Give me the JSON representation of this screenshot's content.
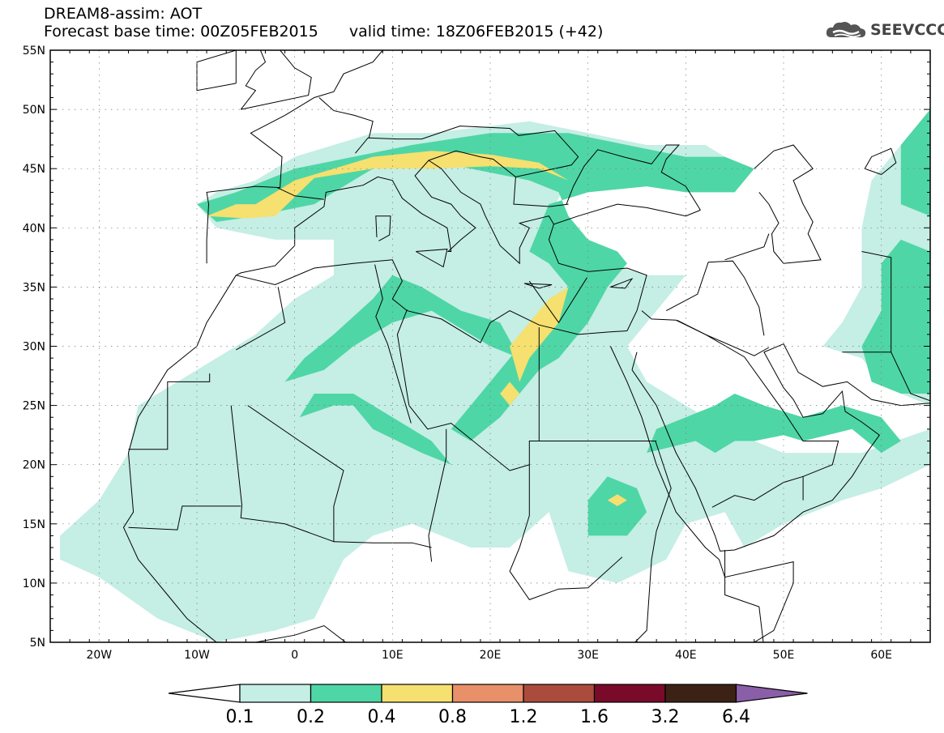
{
  "header": {
    "title": "DREAM8-assim: AOT",
    "base_time": "Forecast base time: 00Z05FEB2015",
    "valid_time": "valid time: 18Z06FEB2015 (+42)"
  },
  "logo": {
    "text": "SEEVCCC",
    "icon": "cloud-logo-icon"
  },
  "map": {
    "lon_range": [
      -25,
      65
    ],
    "lat_range": [
      5,
      55
    ],
    "lon_ticks": [
      {
        "value": -20,
        "label": "20W"
      },
      {
        "value": -10,
        "label": "10W"
      },
      {
        "value": 0,
        "label": "0"
      },
      {
        "value": 10,
        "label": "10E"
      },
      {
        "value": 20,
        "label": "20E"
      },
      {
        "value": 30,
        "label": "30E"
      },
      {
        "value": 40,
        "label": "40E"
      },
      {
        "value": 50,
        "label": "50E"
      },
      {
        "value": 60,
        "label": "60E"
      }
    ],
    "lat_ticks": [
      {
        "value": 55,
        "label": "55N"
      },
      {
        "value": 50,
        "label": "50N"
      },
      {
        "value": 45,
        "label": "45N"
      },
      {
        "value": 40,
        "label": "40N"
      },
      {
        "value": 35,
        "label": "35N"
      },
      {
        "value": 30,
        "label": "30N"
      },
      {
        "value": 25,
        "label": "25N"
      },
      {
        "value": 20,
        "label": "20N"
      },
      {
        "value": 15,
        "label": "15N"
      },
      {
        "value": 10,
        "label": "10N"
      },
      {
        "value": 5,
        "label": "5N"
      }
    ],
    "grid": "dotted"
  },
  "colorbar": {
    "colors": [
      "#ffffff",
      "#c5eee5",
      "#4fd6a6",
      "#f5e070",
      "#e8906a",
      "#aa4b3e",
      "#7a0a2a",
      "#3b2215",
      "#8a5fa8"
    ],
    "labels": [
      "0.1",
      "0.2",
      "0.4",
      "0.8",
      "1.2",
      "1.6",
      "3.2",
      "6.4"
    ]
  },
  "colors": {
    "light": "#c5eee5",
    "medium": "#4fd6a6",
    "high": "#f5e070"
  }
}
